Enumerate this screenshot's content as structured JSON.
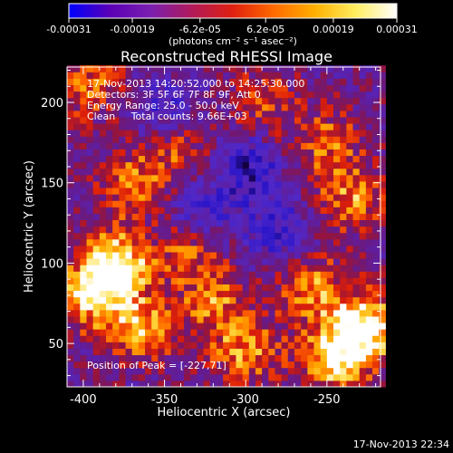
{
  "colorbar": {
    "ticks": [
      "-0.00031",
      "-0.00019",
      "-6.2e-05",
      "6.2e-05",
      "0.00019",
      "0.00031"
    ],
    "tick_values": [
      -0.00031,
      -0.00019,
      -6.2e-05,
      6.2e-05,
      0.00019,
      0.00031
    ],
    "range": [
      -0.00031,
      0.00031
    ],
    "units": "(photons cm⁻² s⁻¹ asec⁻²)",
    "colors": [
      "#0000ff",
      "#5a00b4",
      "#7b1fb0",
      "#b01a5a",
      "#e02010",
      "#ff6a00",
      "#ffb000",
      "#ffee60",
      "#ffffff"
    ]
  },
  "chart_data": {
    "type": "heatmap",
    "title": "Reconstructed RHESSI Image",
    "xlabel": "Heliocentric X (arcsec)",
    "ylabel": "Heliocentric Y (arcsec)",
    "xlim": [
      -410,
      -217
    ],
    "ylim": [
      23,
      222
    ],
    "x_ticks": [
      -400,
      -350,
      -300,
      -250
    ],
    "y_ticks": [
      50,
      100,
      150,
      200
    ],
    "x_tick_labels": [
      "-400",
      "-350",
      "-300",
      "-250"
    ],
    "y_tick_labels": [
      "50",
      "100",
      "150",
      "200"
    ],
    "annotations": [
      "17-Nov-2013 14:20:52.000 to 14:25:30.000",
      "Detectors: 3F 5F 6F 7F 8F 9F, Att 0",
      "Energy Range: 25.0 - 50.0 keV",
      "Clean     Total counts: 9.66E+03"
    ],
    "peak_label": "Position of Peak = [-227,71]",
    "peak_position": [
      -227,
      71
    ],
    "intensity_range": [
      -0.00031,
      0.00031
    ],
    "bright_regions": [
      {
        "x": -380,
        "y": 100,
        "level": 0.95
      },
      {
        "x": -395,
        "y": 80,
        "level": 0.75
      },
      {
        "x": -365,
        "y": 60,
        "level": 0.7
      },
      {
        "x": -228,
        "y": 60,
        "level": 1.0
      },
      {
        "x": -245,
        "y": 40,
        "level": 0.8
      },
      {
        "x": -260,
        "y": 85,
        "level": 0.6
      },
      {
        "x": -235,
        "y": 140,
        "level": 0.6
      },
      {
        "x": -250,
        "y": 175,
        "level": 0.5
      },
      {
        "x": -335,
        "y": 110,
        "level": 0.55
      },
      {
        "x": -320,
        "y": 75,
        "level": 0.55
      },
      {
        "x": -300,
        "y": 45,
        "level": 0.6
      },
      {
        "x": -370,
        "y": 150,
        "level": 0.55
      },
      {
        "x": -395,
        "y": 210,
        "level": 0.5
      },
      {
        "x": -340,
        "y": 170,
        "level": 0.45
      },
      {
        "x": -290,
        "y": 200,
        "level": 0.45
      }
    ],
    "dark_regions": [
      {
        "x": -300,
        "y": 160,
        "level": -0.6
      },
      {
        "x": -330,
        "y": 130,
        "level": -0.5
      },
      {
        "x": -280,
        "y": 120,
        "level": -0.45
      },
      {
        "x": -350,
        "y": 195,
        "level": -0.4
      }
    ]
  },
  "footer": {
    "timestamp": "17-Nov-2013 22:34"
  }
}
